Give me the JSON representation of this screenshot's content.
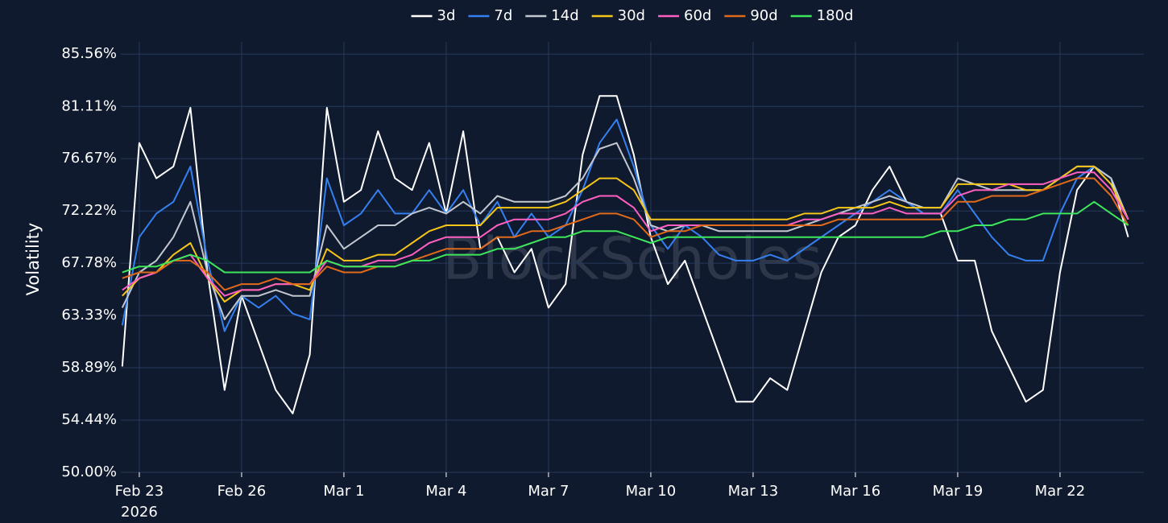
{
  "chart_data": {
    "type": "line",
    "y_label": "Volatility",
    "watermark": "BlockScholes",
    "x_year_label": "2026",
    "x": [
      "2026-02-22T12:00",
      "2026-02-23T00:00",
      "2026-02-23T12:00",
      "2026-02-24T00:00",
      "2026-02-24T12:00",
      "2026-02-25T00:00",
      "2026-02-25T12:00",
      "2026-02-26T00:00",
      "2026-02-26T12:00",
      "2026-02-27T00:00",
      "2026-02-27T12:00",
      "2026-02-28T00:00",
      "2026-02-28T12:00",
      "2026-03-01T00:00",
      "2026-03-01T12:00",
      "2026-03-02T00:00",
      "2026-03-02T12:00",
      "2026-03-03T00:00",
      "2026-03-03T12:00",
      "2026-03-04T00:00",
      "2026-03-04T12:00",
      "2026-03-05T00:00",
      "2026-03-05T12:00",
      "2026-03-06T00:00",
      "2026-03-06T12:00",
      "2026-03-07T00:00",
      "2026-03-07T12:00",
      "2026-03-08T00:00",
      "2026-03-08T12:00",
      "2026-03-09T00:00",
      "2026-03-09T12:00",
      "2026-03-10T00:00",
      "2026-03-10T12:00",
      "2026-03-11T00:00",
      "2026-03-11T12:00",
      "2026-03-12T00:00",
      "2026-03-12T12:00",
      "2026-03-13T00:00",
      "2026-03-13T12:00",
      "2026-03-14T00:00",
      "2026-03-14T12:00",
      "2026-03-15T00:00",
      "2026-03-15T12:00",
      "2026-03-16T00:00",
      "2026-03-16T12:00",
      "2026-03-17T00:00",
      "2026-03-17T12:00",
      "2026-03-18T00:00",
      "2026-03-18T12:00",
      "2026-03-19T00:00",
      "2026-03-19T12:00",
      "2026-03-20T00:00",
      "2026-03-20T12:00",
      "2026-03-21T00:00",
      "2026-03-21T12:00",
      "2026-03-22T00:00",
      "2026-03-22T12:00",
      "2026-03-23T00:00",
      "2026-03-23T12:00",
      "2026-03-24T00:00"
    ],
    "xlim": [
      "2026-02-22T11:00",
      "2026-03-24T11:00"
    ],
    "xticks": [
      {
        "value": "2026-02-23T00:00",
        "label": "Feb 23"
      },
      {
        "value": "2026-02-26T00:00",
        "label": "Feb 26"
      },
      {
        "value": "2026-03-01T00:00",
        "label": "Mar 1"
      },
      {
        "value": "2026-03-04T00:00",
        "label": "Mar 4"
      },
      {
        "value": "2026-03-07T00:00",
        "label": "Mar 7"
      },
      {
        "value": "2026-03-10T00:00",
        "label": "Mar 10"
      },
      {
        "value": "2026-03-13T00:00",
        "label": "Mar 13"
      },
      {
        "value": "2026-03-16T00:00",
        "label": "Mar 16"
      },
      {
        "value": "2026-03-19T00:00",
        "label": "Mar 19"
      },
      {
        "value": "2026-03-22T00:00",
        "label": "Mar 22"
      }
    ],
    "ylim": [
      50,
      86.6
    ],
    "yticks": [
      {
        "value": 50,
        "label": "50.00%"
      },
      {
        "value": 54.44,
        "label": "54.44%"
      },
      {
        "value": 58.89,
        "label": "58.89%"
      },
      {
        "value": 63.33,
        "label": "63.33%"
      },
      {
        "value": 67.78,
        "label": "67.78%"
      },
      {
        "value": 72.22,
        "label": "72.22%"
      },
      {
        "value": 76.67,
        "label": "76.67%"
      },
      {
        "value": 81.11,
        "label": "81.11%"
      },
      {
        "value": 85.56,
        "label": "85.56%"
      }
    ],
    "grid": true,
    "legend": "top",
    "series": [
      {
        "name": "3d",
        "color": "#ffffff",
        "values": [
          59,
          78,
          75,
          76,
          81,
          67,
          57,
          65,
          61,
          57,
          55,
          60,
          81,
          73,
          74,
          79,
          75,
          74,
          78,
          72,
          79,
          69,
          70,
          67,
          69,
          64,
          66,
          77,
          82,
          82,
          77,
          70,
          66,
          68,
          64,
          60,
          56,
          56,
          58,
          57,
          62,
          67,
          70,
          71,
          74,
          76,
          73,
          72,
          72,
          68,
          68,
          62,
          59,
          56,
          57,
          67,
          74,
          76,
          75,
          70
        ]
      },
      {
        "name": "7d",
        "color": "#3580f0",
        "values": [
          62.5,
          70,
          72,
          73,
          76,
          68,
          62,
          65,
          64,
          65,
          63.5,
          63,
          75,
          71,
          72,
          74,
          72,
          72,
          74,
          72,
          74,
          71,
          73,
          70,
          72,
          70,
          71,
          74,
          78,
          80,
          76,
          71,
          69,
          71,
          70,
          68.5,
          68,
          68,
          68.5,
          68,
          69,
          70,
          71,
          72,
          73,
          74,
          73,
          72,
          72,
          74,
          72,
          70,
          68.5,
          68,
          68,
          72,
          75,
          76,
          75,
          71.5
        ]
      },
      {
        "name": "14d",
        "color": "#c3c7d0",
        "values": [
          64,
          67,
          68,
          70,
          73,
          67,
          63,
          65,
          65,
          65.5,
          65,
          65,
          71,
          69,
          70,
          71,
          71,
          72,
          72.5,
          72,
          73,
          72,
          73.5,
          73,
          73,
          73,
          73.5,
          75,
          77.5,
          78,
          75,
          71,
          70.5,
          71,
          71,
          70.5,
          70.5,
          70.5,
          70.5,
          70.5,
          71,
          71.5,
          72,
          72.5,
          73,
          73.5,
          73,
          72.5,
          72.5,
          75,
          74.5,
          74,
          74,
          74,
          74,
          75,
          76,
          76,
          75,
          71.5
        ]
      },
      {
        "name": "30d",
        "color": "#f5c518",
        "values": [
          65,
          66.5,
          67,
          68.5,
          69.5,
          66.5,
          64.5,
          65.5,
          65.5,
          66,
          66,
          65.5,
          69,
          68,
          68,
          68.5,
          68.5,
          69.5,
          70.5,
          71,
          71,
          71,
          72.5,
          72.5,
          72.5,
          72.5,
          73,
          74,
          75,
          75,
          74,
          71.5,
          71.5,
          71.5,
          71.5,
          71.5,
          71.5,
          71.5,
          71.5,
          71.5,
          72,
          72,
          72.5,
          72.5,
          72.5,
          73,
          72.5,
          72.5,
          72.5,
          74.5,
          74.5,
          74.5,
          74.5,
          74,
          74,
          75,
          76,
          76,
          74.5,
          71.5
        ]
      },
      {
        "name": "60d",
        "color": "#ff5fc0",
        "values": [
          65.5,
          66.5,
          67,
          68,
          68.5,
          66.5,
          65,
          65.5,
          65.5,
          66,
          66,
          66,
          68,
          67.5,
          67.5,
          68,
          68,
          68.5,
          69.5,
          70,
          70,
          70,
          71,
          71.5,
          71.5,
          71.5,
          72,
          73,
          73.5,
          73.5,
          72.5,
          70.5,
          71,
          71,
          71,
          71,
          71,
          71,
          71,
          71,
          71.5,
          71.5,
          72,
          72,
          72,
          72.5,
          72,
          72,
          72,
          73.5,
          74,
          74,
          74.5,
          74.5,
          74.5,
          75,
          75.5,
          75.5,
          74,
          71.5
        ]
      },
      {
        "name": "90d",
        "color": "#e06a1a",
        "values": [
          66.5,
          67,
          67,
          68,
          68,
          67,
          65.5,
          66,
          66,
          66.5,
          66,
          66,
          67.5,
          67,
          67,
          67.5,
          67.5,
          68,
          68.5,
          69,
          69,
          69,
          70,
          70,
          70.5,
          70.5,
          71,
          71.5,
          72,
          72,
          71.5,
          70,
          70.5,
          70.5,
          71,
          71,
          71,
          71,
          71,
          71,
          71,
          71,
          71.5,
          71.5,
          71.5,
          71.5,
          71.5,
          71.5,
          71.5,
          73,
          73,
          73.5,
          73.5,
          73.5,
          74,
          74.5,
          75,
          75,
          73.5,
          71
        ]
      },
      {
        "name": "180d",
        "color": "#3ee65a",
        "values": [
          67,
          67.5,
          67.5,
          68,
          68.5,
          68,
          67,
          67,
          67,
          67,
          67,
          67,
          68,
          67.5,
          67.5,
          67.5,
          67.5,
          68,
          68,
          68.5,
          68.5,
          68.5,
          69,
          69,
          69.5,
          70,
          70,
          70.5,
          70.5,
          70.5,
          70,
          69.5,
          70,
          70,
          70,
          70,
          70,
          70,
          70,
          70,
          70,
          70,
          70,
          70,
          70,
          70,
          70,
          70,
          70.5,
          70.5,
          71,
          71,
          71.5,
          71.5,
          72,
          72,
          72,
          73,
          72,
          71
        ]
      }
    ]
  }
}
